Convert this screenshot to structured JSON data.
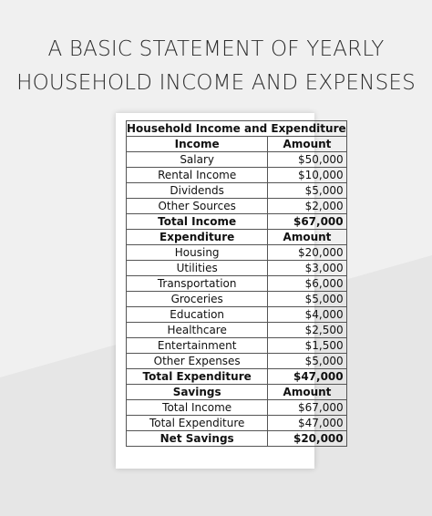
{
  "title": {
    "line1": "A BASIC STATEMENT OF YEARLY",
    "line2": "HOUSEHOLD INCOME AND EXPENSES"
  },
  "sheet": {
    "header": "Household Income and Expenditure",
    "income_head": {
      "label": "Income",
      "amount": "Amount"
    },
    "income": [
      {
        "label": "Salary",
        "amount": "$50,000"
      },
      {
        "label": "Rental Income",
        "amount": "$10,000"
      },
      {
        "label": "Dividends",
        "amount": "$5,000"
      },
      {
        "label": "Other Sources",
        "amount": "$2,000"
      }
    ],
    "total_income": {
      "label": "Total Income",
      "amount": "$67,000"
    },
    "expenditure_head": {
      "label": "Expenditure",
      "amount": "Amount"
    },
    "expenditure": [
      {
        "label": "Housing",
        "amount": "$20,000"
      },
      {
        "label": "Utilities",
        "amount": "$3,000"
      },
      {
        "label": "Transportation",
        "amount": "$6,000"
      },
      {
        "label": "Groceries",
        "amount": "$5,000"
      },
      {
        "label": "Education",
        "amount": "$4,000"
      },
      {
        "label": "Healthcare",
        "amount": "$2,500"
      },
      {
        "label": "Entertainment",
        "amount": "$1,500"
      },
      {
        "label": "Other Expenses",
        "amount": "$5,000"
      }
    ],
    "total_expenditure": {
      "label": "Total Expenditure",
      "amount": "$47,000"
    },
    "savings_head": {
      "label": "Savings",
      "amount": "Amount"
    },
    "savings": [
      {
        "label": "Total Income",
        "amount": "$67,000"
      },
      {
        "label": "Total Expenditure",
        "amount": "$47,000"
      }
    ],
    "net_savings": {
      "label": "Net Savings",
      "amount": "$20,000"
    }
  }
}
